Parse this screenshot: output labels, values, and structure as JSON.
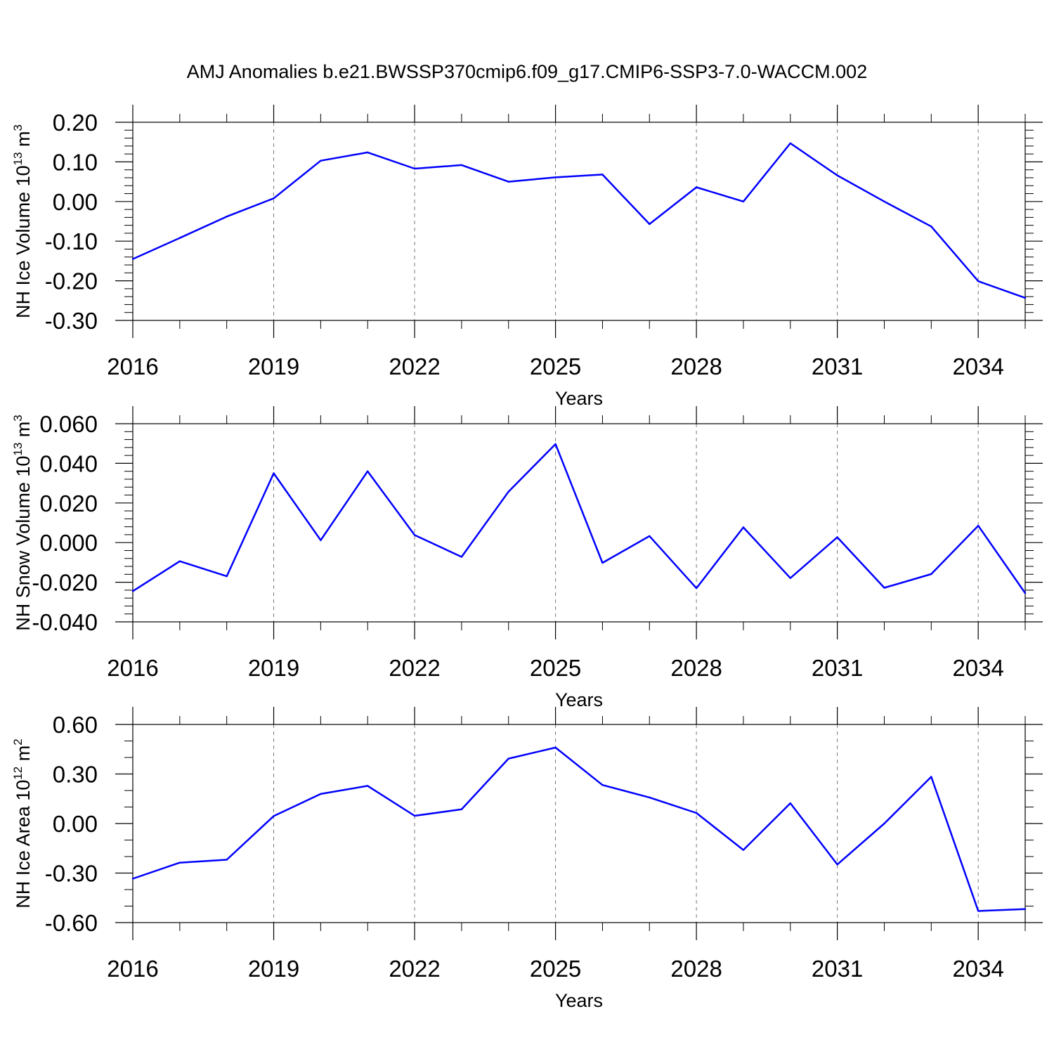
{
  "figure": {
    "title": "AMJ Anomalies b.e21.BWSSP370cmip6.f09_g17.CMIP6-SSP3-7.0-WACCM.002",
    "line_color": "#0000ff"
  },
  "chart_data": [
    {
      "type": "line",
      "ylabel": {
        "prefix": "NH Ice Volume 10",
        "exponent": "13",
        "unit": " m",
        "unit_exponent": "3"
      },
      "xlabel": "Years",
      "xlim": [
        2016,
        2035
      ],
      "ylim": [
        -0.3,
        0.2
      ],
      "xticks": [
        2016,
        2019,
        2022,
        2025,
        2028,
        2031,
        2034
      ],
      "xtick_labels": [
        "2016",
        "2019",
        "2022",
        "2025",
        "2028",
        "2031",
        "2034"
      ],
      "yticks": [
        -0.3,
        -0.2,
        -0.1,
        0.0,
        0.1,
        0.2
      ],
      "ytick_labels": [
        "-0.30",
        "-0.20",
        "-0.10",
        "0.00",
        "0.10",
        "0.20"
      ],
      "x_minor_step": 1,
      "y_minor_step": 0.02,
      "grid": "vertical dashed at major x ticks",
      "series": [
        {
          "x": [
            2016,
            2017,
            2018,
            2019,
            2020,
            2021,
            2022,
            2023,
            2024,
            2025,
            2026,
            2027,
            2028,
            2029,
            2030,
            2031,
            2032,
            2033,
            2034,
            2035
          ],
          "values": [
            -0.145,
            -0.092,
            -0.038,
            0.008,
            0.103,
            0.124,
            0.083,
            0.092,
            0.05,
            0.061,
            0.068,
            -0.057,
            0.036,
            0.0,
            0.147,
            0.066,
            0.0,
            -0.063,
            -0.201,
            -0.243
          ]
        }
      ]
    },
    {
      "type": "line",
      "ylabel": {
        "prefix": "NH Snow Volume 10",
        "exponent": "13",
        "unit": " m",
        "unit_exponent": "3"
      },
      "xlabel": "Years",
      "xlim": [
        2016,
        2035
      ],
      "ylim": [
        -0.04,
        0.06
      ],
      "xticks": [
        2016,
        2019,
        2022,
        2025,
        2028,
        2031,
        2034
      ],
      "xtick_labels": [
        "2016",
        "2019",
        "2022",
        "2025",
        "2028",
        "2031",
        "2034"
      ],
      "yticks": [
        -0.04,
        -0.02,
        0.0,
        0.02,
        0.04,
        0.06
      ],
      "ytick_labels": [
        "-0.040",
        "-0.020",
        "0.000",
        "0.020",
        "0.040",
        "0.060"
      ],
      "x_minor_step": 1,
      "y_minor_step": 0.004,
      "grid": "vertical dashed at major x ticks",
      "series": [
        {
          "x": [
            2016,
            2017,
            2018,
            2019,
            2020,
            2021,
            2022,
            2023,
            2024,
            2025,
            2026,
            2027,
            2028,
            2029,
            2030,
            2031,
            2032,
            2033,
            2034,
            2035
          ],
          "values": [
            -0.0245,
            -0.0094,
            -0.017,
            0.035,
            0.0012,
            0.036,
            0.0038,
            -0.0072,
            0.0257,
            0.0497,
            -0.0102,
            0.0033,
            -0.023,
            0.0077,
            -0.0179,
            0.0027,
            -0.0228,
            -0.0159,
            0.0085,
            -0.0255
          ]
        }
      ]
    },
    {
      "type": "line",
      "ylabel": {
        "prefix": "NH Ice Area 10",
        "exponent": "12",
        "unit": " m",
        "unit_exponent": "2"
      },
      "xlabel": "Years",
      "xlim": [
        2016,
        2035
      ],
      "ylim": [
        -0.6,
        0.6
      ],
      "xticks": [
        2016,
        2019,
        2022,
        2025,
        2028,
        2031,
        2034
      ],
      "xtick_labels": [
        "2016",
        "2019",
        "2022",
        "2025",
        "2028",
        "2031",
        "2034"
      ],
      "yticks": [
        -0.6,
        -0.3,
        0.0,
        0.3,
        0.6
      ],
      "ytick_labels": [
        "-0.60",
        "-0.30",
        "0.00",
        "0.30",
        "0.60"
      ],
      "x_minor_step": 1,
      "y_minor_step": 0.1,
      "grid": "vertical dashed at major x ticks",
      "series": [
        {
          "x": [
            2016,
            2017,
            2018,
            2019,
            2020,
            2021,
            2022,
            2023,
            2024,
            2025,
            2026,
            2027,
            2028,
            2029,
            2030,
            2031,
            2032,
            2033,
            2034,
            2035
          ],
          "values": [
            -0.334,
            -0.237,
            -0.219,
            0.045,
            0.179,
            0.228,
            0.047,
            0.086,
            0.393,
            0.46,
            0.233,
            0.158,
            0.064,
            -0.16,
            0.123,
            -0.248,
            0.0,
            0.283,
            -0.53,
            -0.518
          ]
        }
      ]
    }
  ]
}
